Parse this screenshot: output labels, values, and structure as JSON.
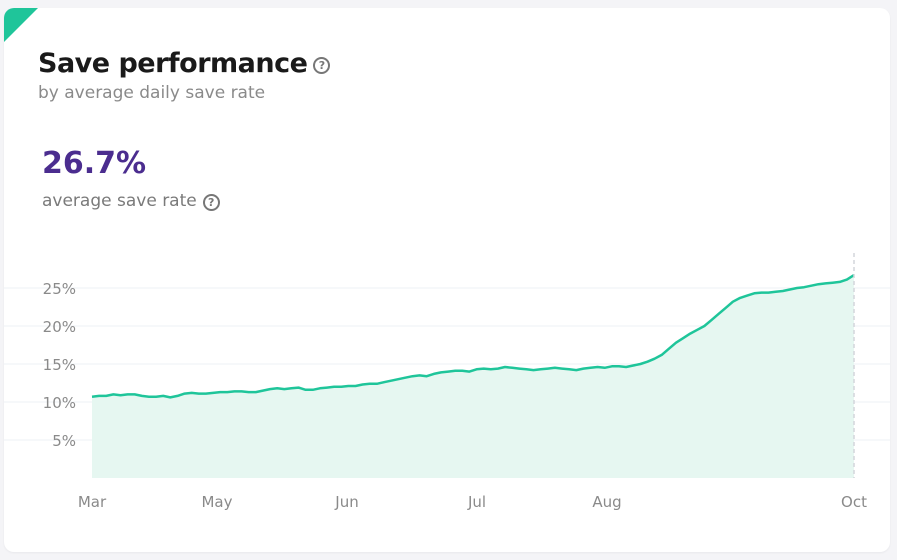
{
  "header": {
    "title": "Save performance",
    "subtitle": "by average daily save rate",
    "help_icon": "question-circle-icon"
  },
  "metric": {
    "value": "26.7%",
    "label": "average save rate",
    "help_icon": "question-circle-icon"
  },
  "colors": {
    "accent": "#1fc59a",
    "line": "#1fc59a",
    "area_fill": "#e6f7f1",
    "metric": "#4b2d8f"
  },
  "chart_data": {
    "type": "area",
    "x_tick_labels": [
      "Mar",
      "May",
      "Jun",
      "Jul",
      "Aug",
      "Oct"
    ],
    "y_tick_labels": [
      "5%",
      "10%",
      "15%",
      "20%",
      "25%"
    ],
    "y_ticks": [
      5,
      10,
      15,
      20,
      25
    ],
    "ylim": [
      0,
      27
    ],
    "grid": true,
    "series": [
      {
        "values": [
          10.7,
          10.8,
          10.8,
          11,
          10.9,
          11,
          11,
          10.8,
          10.7,
          10.7,
          10.8,
          10.6,
          10.8,
          11.1,
          11.2,
          11.1,
          11.1,
          11.2,
          11.3,
          11.3,
          11.4,
          11.4,
          11.3,
          11.3,
          11.5,
          11.7,
          11.8,
          11.7,
          11.8,
          11.9,
          11.6,
          11.6,
          11.8,
          11.9,
          12,
          12,
          12.1,
          12.1,
          12.3,
          12.4,
          12.4,
          12.6,
          12.8,
          13,
          13.2,
          13.4,
          13.5,
          13.4,
          13.7,
          13.9,
          14,
          14.1,
          14.1,
          14,
          14.3,
          14.4,
          14.3,
          14.4,
          14.6,
          14.5,
          14.4,
          14.3,
          14.2,
          14.3,
          14.4,
          14.5,
          14.4,
          14.3,
          14.2,
          14.4,
          14.5,
          14.6,
          14.5,
          14.7,
          14.7,
          14.6,
          14.8,
          15,
          15.3,
          15.7,
          16.2,
          17,
          17.8,
          18.4,
          19,
          19.5,
          20,
          20.8,
          21.6,
          22.4,
          23.2,
          23.7,
          24,
          24.3,
          24.4,
          24.4,
          24.5,
          24.6,
          24.8,
          25,
          25.1,
          25.3,
          25.5,
          25.6,
          25.7,
          25.8,
          26.1,
          26.7
        ]
      }
    ]
  }
}
